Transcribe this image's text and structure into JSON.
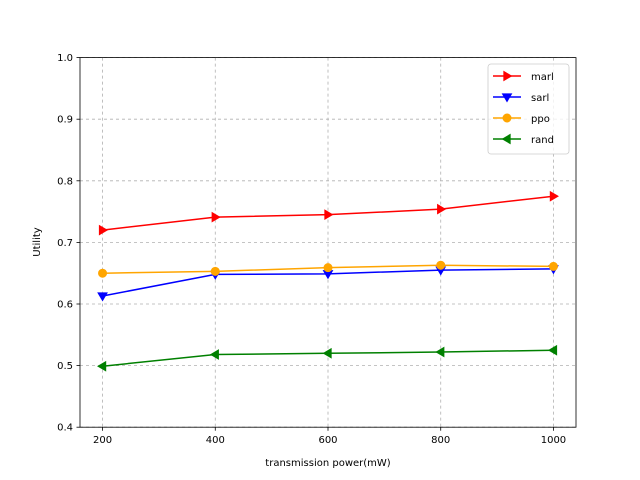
{
  "chart_data": {
    "type": "line",
    "title": "",
    "xlabel": "transmission power(mW)",
    "ylabel": "Utility",
    "x": [
      200,
      400,
      600,
      800,
      1000
    ],
    "xticks": [
      "200",
      "400",
      "600",
      "800",
      "1000"
    ],
    "xlim": [
      160,
      1040
    ],
    "yticks": [
      "0.4",
      "0.5",
      "0.6",
      "0.7",
      "0.8",
      "0.9",
      "1.0"
    ],
    "ylim": [
      0.4,
      1.0
    ],
    "grid": true,
    "legend_position": "top-right",
    "series": [
      {
        "name": "marl",
        "color": "#ff0000",
        "marker": "triangle-right",
        "values": [
          0.72,
          0.741,
          0.745,
          0.754,
          0.775
        ]
      },
      {
        "name": "sarl",
        "color": "#0000ff",
        "marker": "triangle-down",
        "values": [
          0.613,
          0.648,
          0.649,
          0.655,
          0.657
        ]
      },
      {
        "name": "ppo",
        "color": "#ffa500",
        "marker": "circle",
        "values": [
          0.65,
          0.653,
          0.659,
          0.663,
          0.661
        ]
      },
      {
        "name": "rand",
        "color": "#008000",
        "marker": "triangle-left",
        "values": [
          0.499,
          0.518,
          0.52,
          0.522,
          0.525
        ]
      }
    ]
  }
}
